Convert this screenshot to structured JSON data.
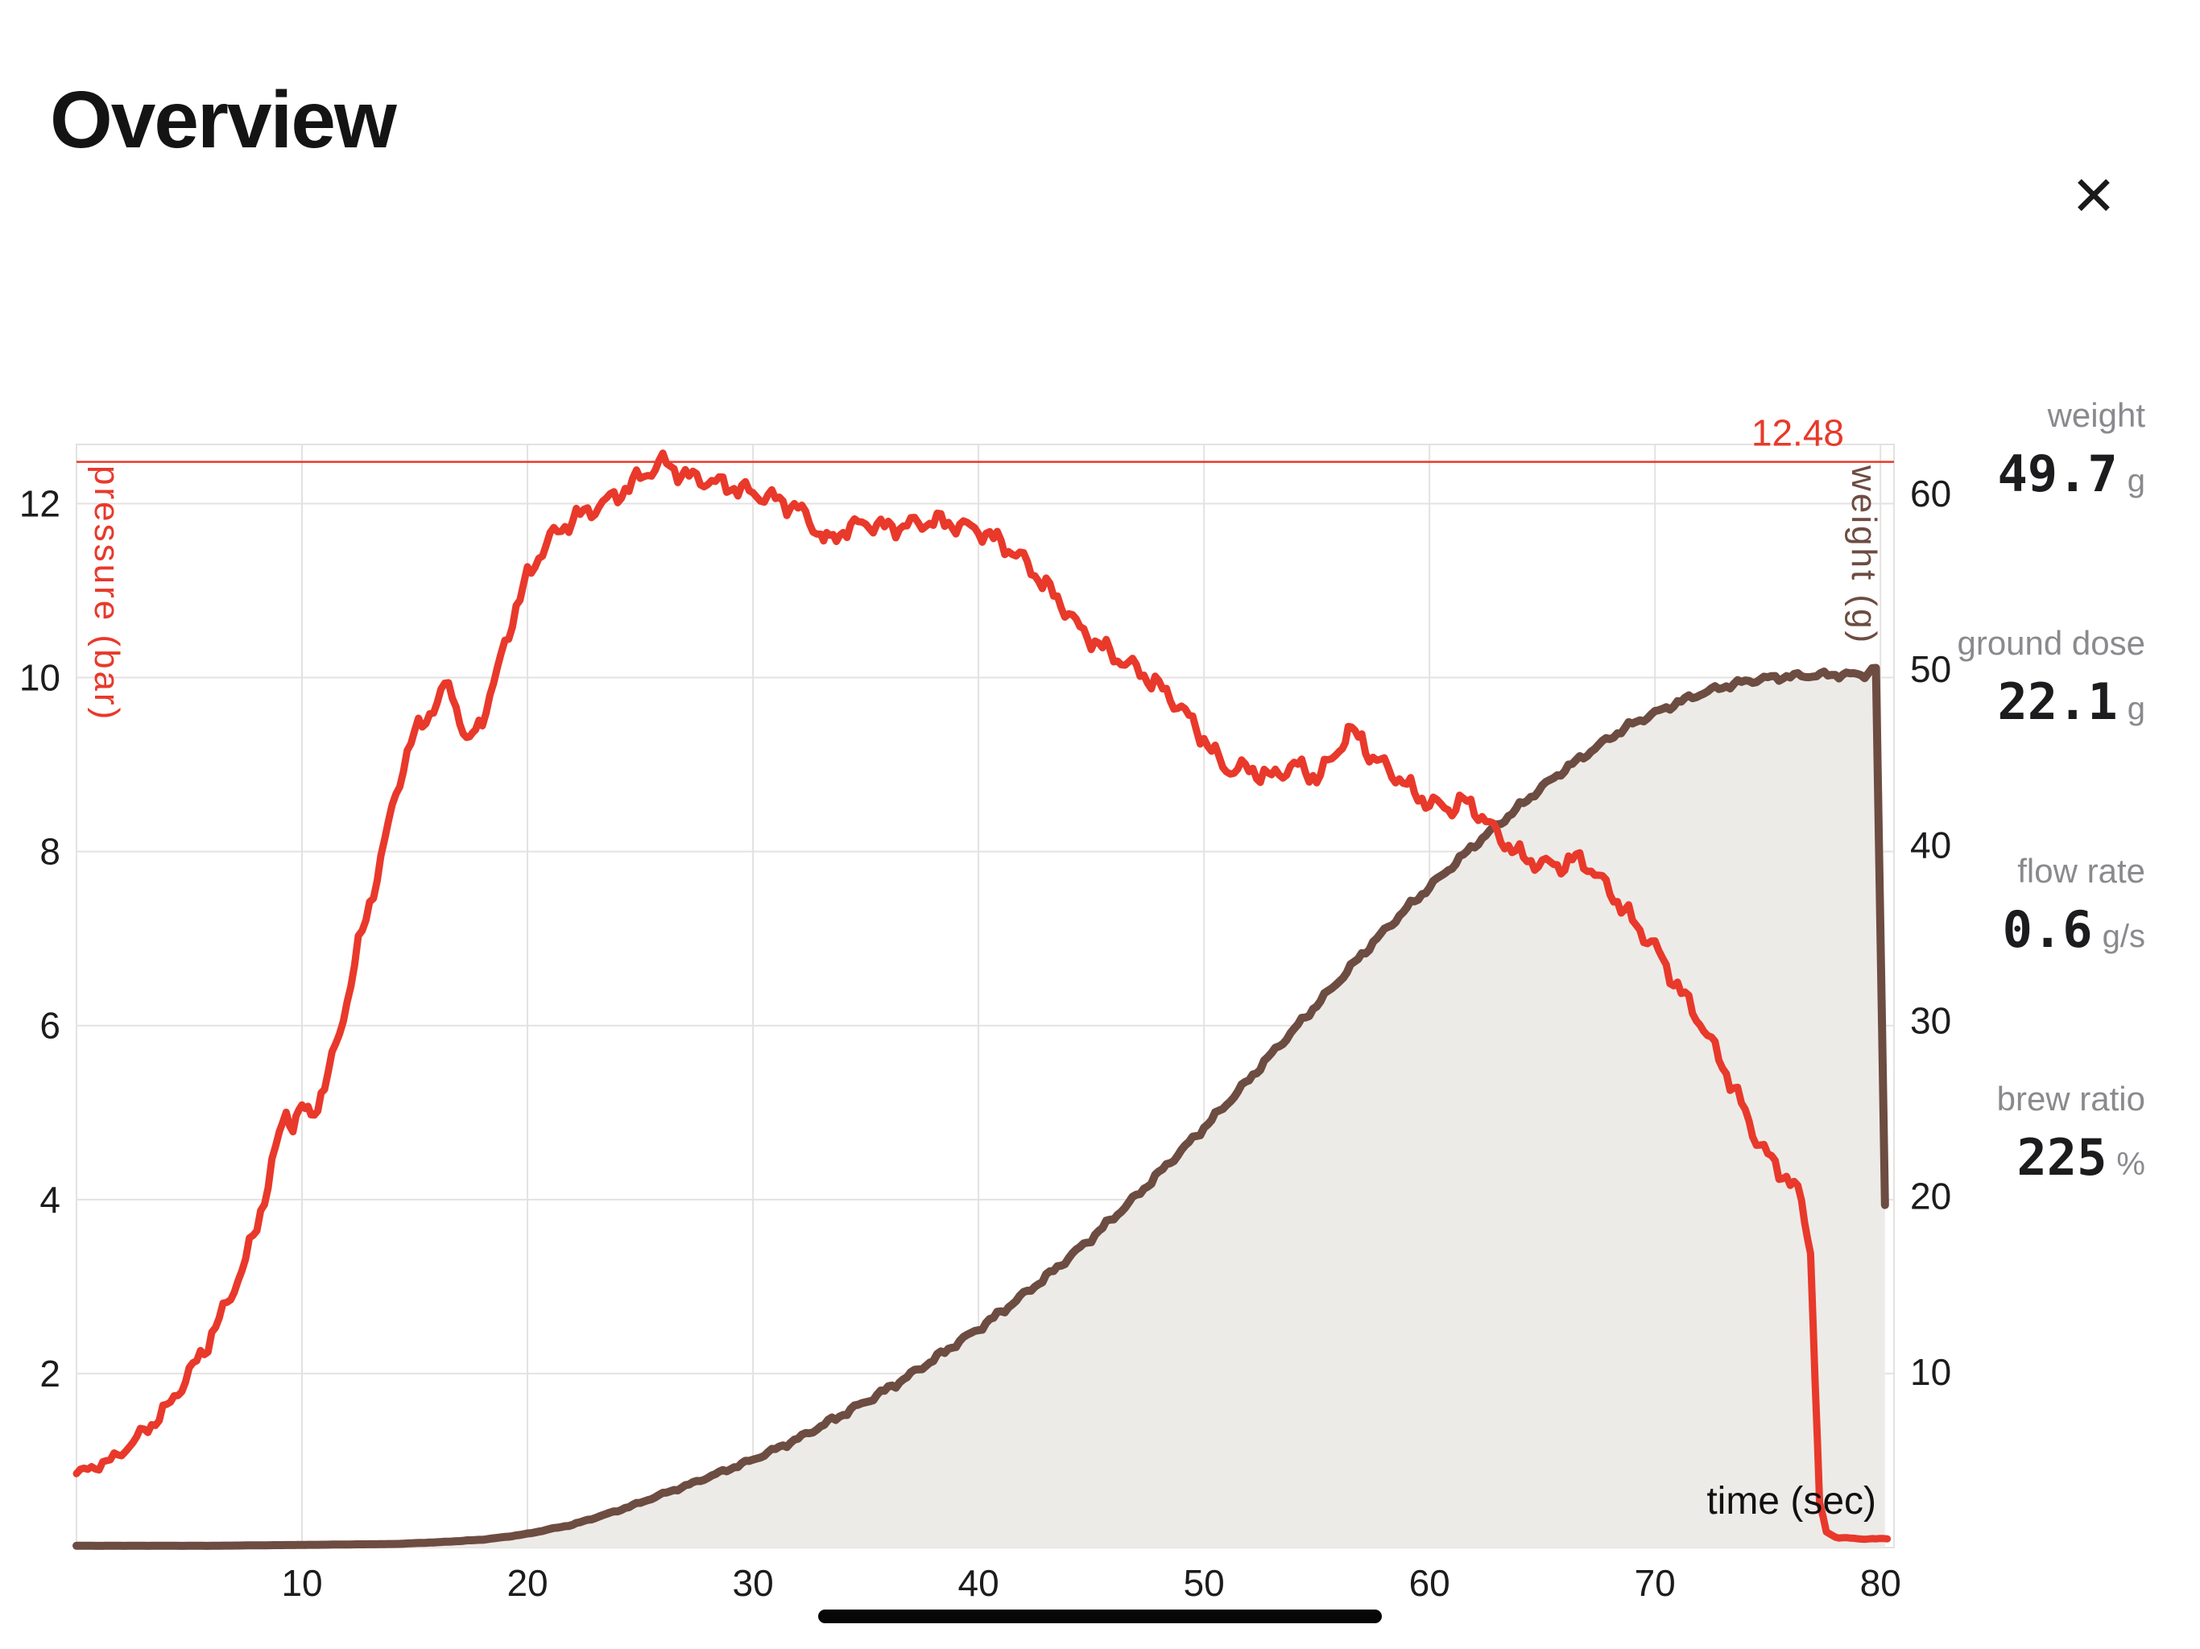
{
  "header": {
    "title": "Overview",
    "close_label": "✕"
  },
  "stats": [
    {
      "label": "weight",
      "value": "49.7",
      "unit": "g"
    },
    {
      "label": "ground dose",
      "value": "22.1",
      "unit": "g"
    },
    {
      "label": "flow rate",
      "value": "0.6",
      "unit": "g/s"
    },
    {
      "label": "brew ratio",
      "value": "225",
      "unit": "%"
    }
  ],
  "chart_data": {
    "type": "line",
    "xlabel": "time (sec)",
    "x_ticks": [
      10,
      20,
      30,
      40,
      50,
      60,
      70,
      80
    ],
    "xlim": [
      0,
      80.6
    ],
    "grid": true,
    "axes": {
      "left": {
        "label": "pressure (bar)",
        "color": "#e8392b",
        "ticks": [
          2,
          4,
          6,
          8,
          10,
          12
        ],
        "lim": [
          0,
          12.68
        ]
      },
      "right": {
        "label": "weight (g)",
        "color": "#6d4c41",
        "ticks": [
          10,
          20,
          30,
          40,
          50,
          60
        ],
        "lim": [
          0,
          62.8
        ]
      }
    },
    "annotation": {
      "text": "12.48",
      "value": 12.48,
      "color": "#e8392b"
    },
    "series": [
      {
        "name": "pressure",
        "axis": "left",
        "color": "#e8392b",
        "points": [
          [
            0,
            0.85
          ],
          [
            0.5,
            0.9
          ],
          [
            1,
            0.95
          ],
          [
            1.5,
            1.0
          ],
          [
            2,
            1.1
          ],
          [
            2.5,
            1.2
          ],
          [
            3,
            1.35
          ],
          [
            3.5,
            1.45
          ],
          [
            4,
            1.6
          ],
          [
            4.5,
            1.8
          ],
          [
            5,
            2.0
          ],
          [
            5.5,
            2.2
          ],
          [
            6,
            2.45
          ],
          [
            6.5,
            2.7
          ],
          [
            7,
            3.0
          ],
          [
            7.5,
            3.3
          ],
          [
            8,
            3.7
          ],
          [
            8.5,
            4.2
          ],
          [
            9,
            4.75
          ],
          [
            9.3,
            5.0
          ],
          [
            9.6,
            4.88
          ],
          [
            10,
            5.05
          ],
          [
            10.4,
            4.95
          ],
          [
            11,
            5.3
          ],
          [
            11.5,
            5.75
          ],
          [
            12,
            6.3
          ],
          [
            12.5,
            6.9
          ],
          [
            13,
            7.4
          ],
          [
            13.5,
            7.9
          ],
          [
            14,
            8.5
          ],
          [
            14.5,
            9.0
          ],
          [
            15,
            9.35
          ],
          [
            15.5,
            9.55
          ],
          [
            16,
            9.7
          ],
          [
            16.5,
            9.95
          ],
          [
            17,
            9.55
          ],
          [
            17.3,
            9.2
          ],
          [
            17.7,
            9.4
          ],
          [
            18,
            9.55
          ],
          [
            18.5,
            9.9
          ],
          [
            19,
            10.4
          ],
          [
            19.5,
            10.8
          ],
          [
            20,
            11.15
          ],
          [
            20.5,
            11.4
          ],
          [
            21,
            11.6
          ],
          [
            22,
            11.82
          ],
          [
            23,
            11.95
          ],
          [
            24,
            12.1
          ],
          [
            25,
            12.3
          ],
          [
            26,
            12.48
          ],
          [
            26.5,
            12.4
          ],
          [
            27,
            12.32
          ],
          [
            28,
            12.26
          ],
          [
            29,
            12.2
          ],
          [
            30,
            12.12
          ],
          [
            31,
            12.05
          ],
          [
            32,
            11.95
          ],
          [
            32.5,
            11.8
          ],
          [
            33,
            11.65
          ],
          [
            33.4,
            11.55
          ],
          [
            34,
            11.7
          ],
          [
            35,
            11.78
          ],
          [
            36,
            11.72
          ],
          [
            37,
            11.76
          ],
          [
            38,
            11.8
          ],
          [
            39,
            11.76
          ],
          [
            40,
            11.7
          ],
          [
            41,
            11.55
          ],
          [
            42,
            11.35
          ],
          [
            43,
            11.05
          ],
          [
            44,
            10.75
          ],
          [
            44.5,
            10.55
          ],
          [
            45,
            10.45
          ],
          [
            46,
            10.25
          ],
          [
            47,
            10.1
          ],
          [
            48,
            9.9
          ],
          [
            49,
            9.65
          ],
          [
            50,
            9.3
          ],
          [
            50.5,
            9.1
          ],
          [
            51,
            8.95
          ],
          [
            52,
            8.95
          ],
          [
            53,
            8.85
          ],
          [
            54,
            9.0
          ],
          [
            55,
            8.85
          ],
          [
            55.5,
            9.0
          ],
          [
            56,
            9.2
          ],
          [
            56.4,
            9.38
          ],
          [
            57,
            9.3
          ],
          [
            57.5,
            9.05
          ],
          [
            58,
            9.0
          ],
          [
            59,
            8.75
          ],
          [
            60,
            8.55
          ],
          [
            61,
            8.5
          ],
          [
            61.5,
            8.58
          ],
          [
            62,
            8.5
          ],
          [
            63,
            8.2
          ],
          [
            64,
            7.95
          ],
          [
            65,
            7.85
          ],
          [
            66,
            7.85
          ],
          [
            66.5,
            7.92
          ],
          [
            67,
            7.85
          ],
          [
            68,
            7.55
          ],
          [
            69,
            7.2
          ],
          [
            70,
            6.9
          ],
          [
            71,
            6.45
          ],
          [
            72,
            6.05
          ],
          [
            73,
            5.55
          ],
          [
            74,
            5.0
          ],
          [
            74.5,
            4.7
          ],
          [
            75,
            4.5
          ],
          [
            76,
            4.2
          ],
          [
            76.5,
            4.0
          ],
          [
            76.9,
            3.4
          ],
          [
            77.1,
            2.0
          ],
          [
            77.3,
            0.5
          ],
          [
            77.6,
            0.18
          ],
          [
            78,
            0.12
          ],
          [
            79,
            0.1
          ],
          [
            80.3,
            0.1
          ]
        ]
      },
      {
        "name": "weight",
        "axis": "right",
        "color": "#6d4c41",
        "fill": "#edebe8",
        "points": [
          [
            0,
            0.1
          ],
          [
            6,
            0.1
          ],
          [
            10,
            0.15
          ],
          [
            14,
            0.2
          ],
          [
            16,
            0.3
          ],
          [
            18,
            0.45
          ],
          [
            19,
            0.6
          ],
          [
            20,
            0.78
          ],
          [
            21,
            1.05
          ],
          [
            22,
            1.3
          ],
          [
            23,
            1.7
          ],
          [
            24,
            2.1
          ],
          [
            25,
            2.55
          ],
          [
            26,
            3.05
          ],
          [
            27,
            3.5
          ],
          [
            28,
            4.0
          ],
          [
            29,
            4.5
          ],
          [
            30,
            5.0
          ],
          [
            31,
            5.6
          ],
          [
            32,
            6.2
          ],
          [
            33,
            6.9
          ],
          [
            34,
            7.6
          ],
          [
            35,
            8.3
          ],
          [
            36,
            9.05
          ],
          [
            37,
            9.85
          ],
          [
            38,
            10.7
          ],
          [
            39,
            11.6
          ],
          [
            40,
            12.45
          ],
          [
            41,
            13.4
          ],
          [
            42,
            14.4
          ],
          [
            43,
            15.4
          ],
          [
            44,
            16.5
          ],
          [
            45,
            17.6
          ],
          [
            46,
            18.8
          ],
          [
            47,
            20.0
          ],
          [
            48,
            21.3
          ],
          [
            49,
            22.6
          ],
          [
            50,
            23.9
          ],
          [
            51,
            25.25
          ],
          [
            52,
            26.65
          ],
          [
            53,
            28.1
          ],
          [
            54,
            29.5
          ],
          [
            55,
            30.9
          ],
          [
            56,
            32.3
          ],
          [
            57,
            33.75
          ],
          [
            58,
            35.1
          ],
          [
            59,
            36.4
          ],
          [
            60,
            37.6
          ],
          [
            61,
            38.8
          ],
          [
            62,
            40.0
          ],
          [
            63,
            41.1
          ],
          [
            64,
            42.2
          ],
          [
            65,
            43.3
          ],
          [
            66,
            44.3
          ],
          [
            67,
            45.2
          ],
          [
            68,
            46.1
          ],
          [
            69,
            46.9
          ],
          [
            70,
            47.5
          ],
          [
            71,
            48.1
          ],
          [
            72,
            48.6
          ],
          [
            73,
            49.0
          ],
          [
            74,
            49.3
          ],
          [
            75,
            49.5
          ],
          [
            76,
            49.6
          ],
          [
            77,
            49.65
          ],
          [
            78,
            49.7
          ],
          [
            79.3,
            49.7
          ],
          [
            79.8,
            50.1
          ],
          [
            80.2,
            19.5
          ]
        ]
      }
    ]
  }
}
